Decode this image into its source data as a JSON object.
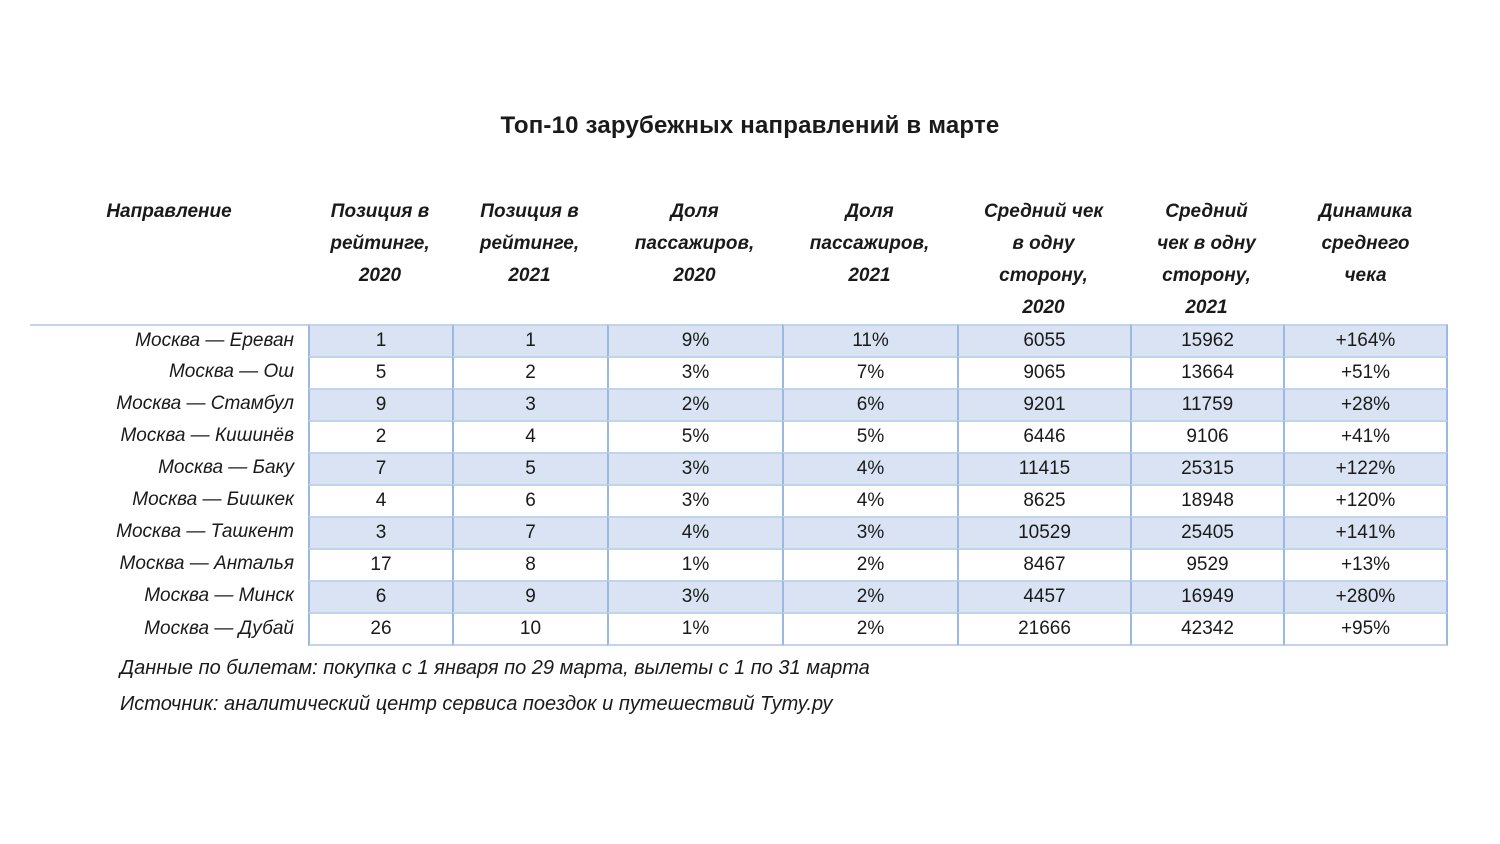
{
  "title": "Топ-10 зарубежных направлений в марте",
  "header": {
    "columns_display": [
      "Направление",
      "Позиция в\nрейтинге,\n2020",
      "Позиция в\nрейтинге,\n2021",
      "Доля\nпассажиров,\n2020",
      "Доля\nпассажиров,\n2021",
      "Средний чек\nв одну\nсторону,\n2020",
      "Средний\nчек в одну\nсторону,\n2021",
      "Динамика\nсреднего\nчека"
    ]
  },
  "chart_data": {
    "type": "table",
    "title": "Топ-10 зарубежных направлений в марте",
    "columns": [
      "Направление",
      "Позиция в рейтинге, 2020",
      "Позиция в рейтинге, 2021",
      "Доля пассажиров, 2020",
      "Доля пассажиров, 2021",
      "Средний чек в одну сторону, 2020",
      "Средний чек в одну сторону, 2021",
      "Динамика среднего чека"
    ],
    "rows": [
      [
        "Москва — Ереван",
        "1",
        "1",
        "9%",
        "11%",
        "6055",
        "15962",
        "+164%"
      ],
      [
        "Москва — Ош",
        "5",
        "2",
        "3%",
        "7%",
        "9065",
        "13664",
        "+51%"
      ],
      [
        "Москва — Стамбул",
        "9",
        "3",
        "2%",
        "6%",
        "9201",
        "11759",
        "+28%"
      ],
      [
        "Москва — Кишинёв",
        "2",
        "4",
        "5%",
        "5%",
        "6446",
        "9106",
        "+41%"
      ],
      [
        "Москва — Баку",
        "7",
        "5",
        "3%",
        "4%",
        "11415",
        "25315",
        "+122%"
      ],
      [
        "Москва — Бишкек",
        "4",
        "6",
        "3%",
        "4%",
        "8625",
        "18948",
        "+120%"
      ],
      [
        "Москва — Ташкент",
        "3",
        "7",
        "4%",
        "3%",
        "10529",
        "25405",
        "+141%"
      ],
      [
        "Москва — Анталья",
        "17",
        "8",
        "1%",
        "2%",
        "8467",
        "9529",
        "+13%"
      ],
      [
        "Москва — Минск",
        "6",
        "9",
        "3%",
        "2%",
        "4457",
        "16949",
        "+280%"
      ],
      [
        "Москва — Дубай",
        "26",
        "10",
        "1%",
        "2%",
        "21666",
        "42342",
        "+95%"
      ]
    ],
    "notes": [
      "Данные по билетам: покупка с 1 января по 29 марта, вылеты с 1 по 31 марта",
      "Источник: аналитический центр сервиса поездок и путешествий Туту.ру"
    ]
  },
  "notes": [
    "Данные по билетам: покупка с 1 января по 29 марта, вылеты с 1 по 31 марта",
    "Источник: аналитический центр сервиса поездок и путешествий Туту.ру"
  ],
  "colors": {
    "row_shade": "#dae3f3",
    "border_vertical": "#9ab8e0",
    "border_horizontal": "#c2d4ec",
    "text": "#1a1a1a",
    "background": "#ffffff"
  }
}
